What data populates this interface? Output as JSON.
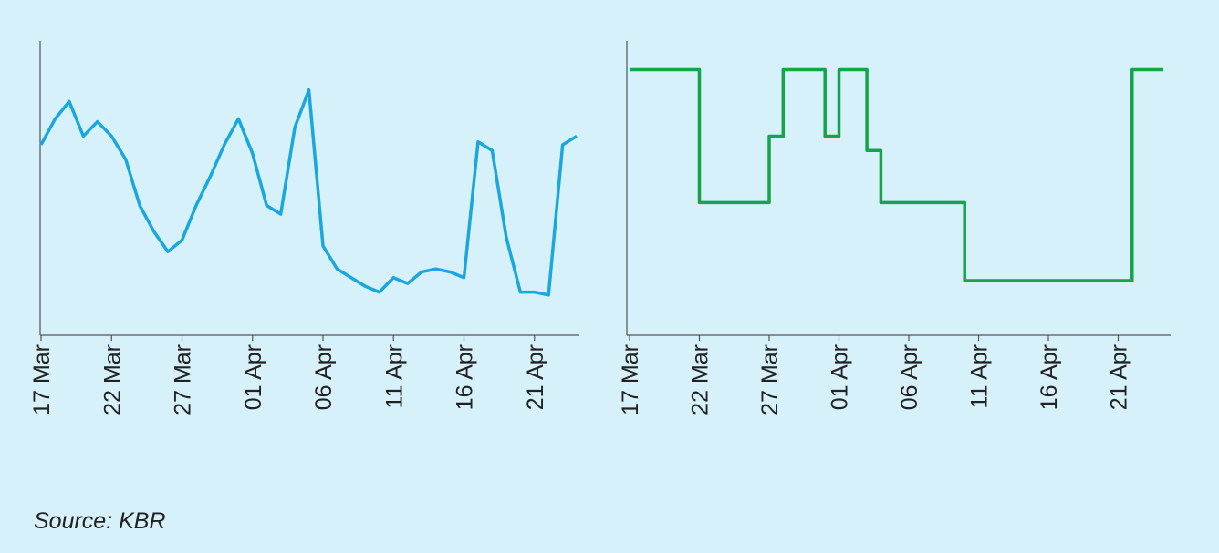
{
  "chart_data": [
    {
      "type": "line",
      "drawstyle": "default",
      "x": [
        "17 Mar",
        "18 Mar",
        "19 Mar",
        "20 Mar",
        "21 Mar",
        "22 Mar",
        "23 Mar",
        "24 Mar",
        "25 Mar",
        "26 Mar",
        "27 Mar",
        "28 Mar",
        "29 Mar",
        "30 Mar",
        "31 Mar",
        "01 Apr",
        "02 Apr",
        "03 Apr",
        "04 Apr",
        "05 Apr",
        "06 Apr",
        "07 Apr",
        "08 Apr",
        "09 Apr",
        "10 Apr",
        "11 Apr",
        "12 Apr",
        "13 Apr",
        "14 Apr",
        "15 Apr",
        "16 Apr",
        "17 Apr",
        "18 Apr",
        "19 Apr",
        "20 Apr",
        "21 Apr",
        "22 Apr",
        "23 Apr",
        "24 Apr"
      ],
      "series": [
        {
          "color": "#1aa7e0",
          "values": [
            65,
            74,
            80,
            68,
            73,
            68,
            60,
            44,
            35,
            28,
            32,
            44,
            54,
            65,
            74,
            62,
            44,
            41,
            71,
            84,
            30,
            22,
            19,
            16,
            14,
            19,
            17,
            21,
            22,
            21,
            19,
            66,
            63,
            33,
            14,
            14,
            13,
            65,
            68
          ]
        }
      ],
      "ylim": [
        0,
        100
      ],
      "xticks": [
        "17 Mar",
        "22 Mar",
        "27 Mar",
        "01 Apr",
        "06 Apr",
        "11 Apr",
        "16 Apr",
        "21 Apr"
      ]
    },
    {
      "type": "line",
      "drawstyle": "steps-post",
      "x": [
        "17 Mar",
        "18 Mar",
        "19 Mar",
        "20 Mar",
        "21 Mar",
        "22 Mar",
        "23 Mar",
        "24 Mar",
        "25 Mar",
        "26 Mar",
        "27 Mar",
        "28 Mar",
        "29 Mar",
        "30 Mar",
        "31 Mar",
        "01 Apr",
        "02 Apr",
        "03 Apr",
        "04 Apr",
        "05 Apr",
        "06 Apr",
        "07 Apr",
        "08 Apr",
        "09 Apr",
        "10 Apr",
        "11 Apr",
        "12 Apr",
        "13 Apr",
        "14 Apr",
        "15 Apr",
        "16 Apr",
        "17 Apr",
        "18 Apr",
        "19 Apr",
        "20 Apr",
        "21 Apr",
        "22 Apr",
        "23 Apr",
        "24 Apr"
      ],
      "series": [
        {
          "color": "#17a34a",
          "values": [
            91,
            91,
            91,
            91,
            91,
            45,
            45,
            45,
            45,
            45,
            68,
            91,
            91,
            91,
            68,
            91,
            91,
            63,
            45,
            45,
            45,
            45,
            45,
            45,
            18,
            18,
            18,
            18,
            18,
            18,
            18,
            18,
            18,
            18,
            18,
            18,
            91,
            91,
            91
          ]
        }
      ],
      "ylim": [
        0,
        100
      ],
      "xticks": [
        "17 Mar",
        "22 Mar",
        "27 Mar",
        "01 Apr",
        "06 Apr",
        "11 Apr",
        "16 Apr",
        "21 Apr"
      ]
    }
  ],
  "source": "Source: KBR"
}
